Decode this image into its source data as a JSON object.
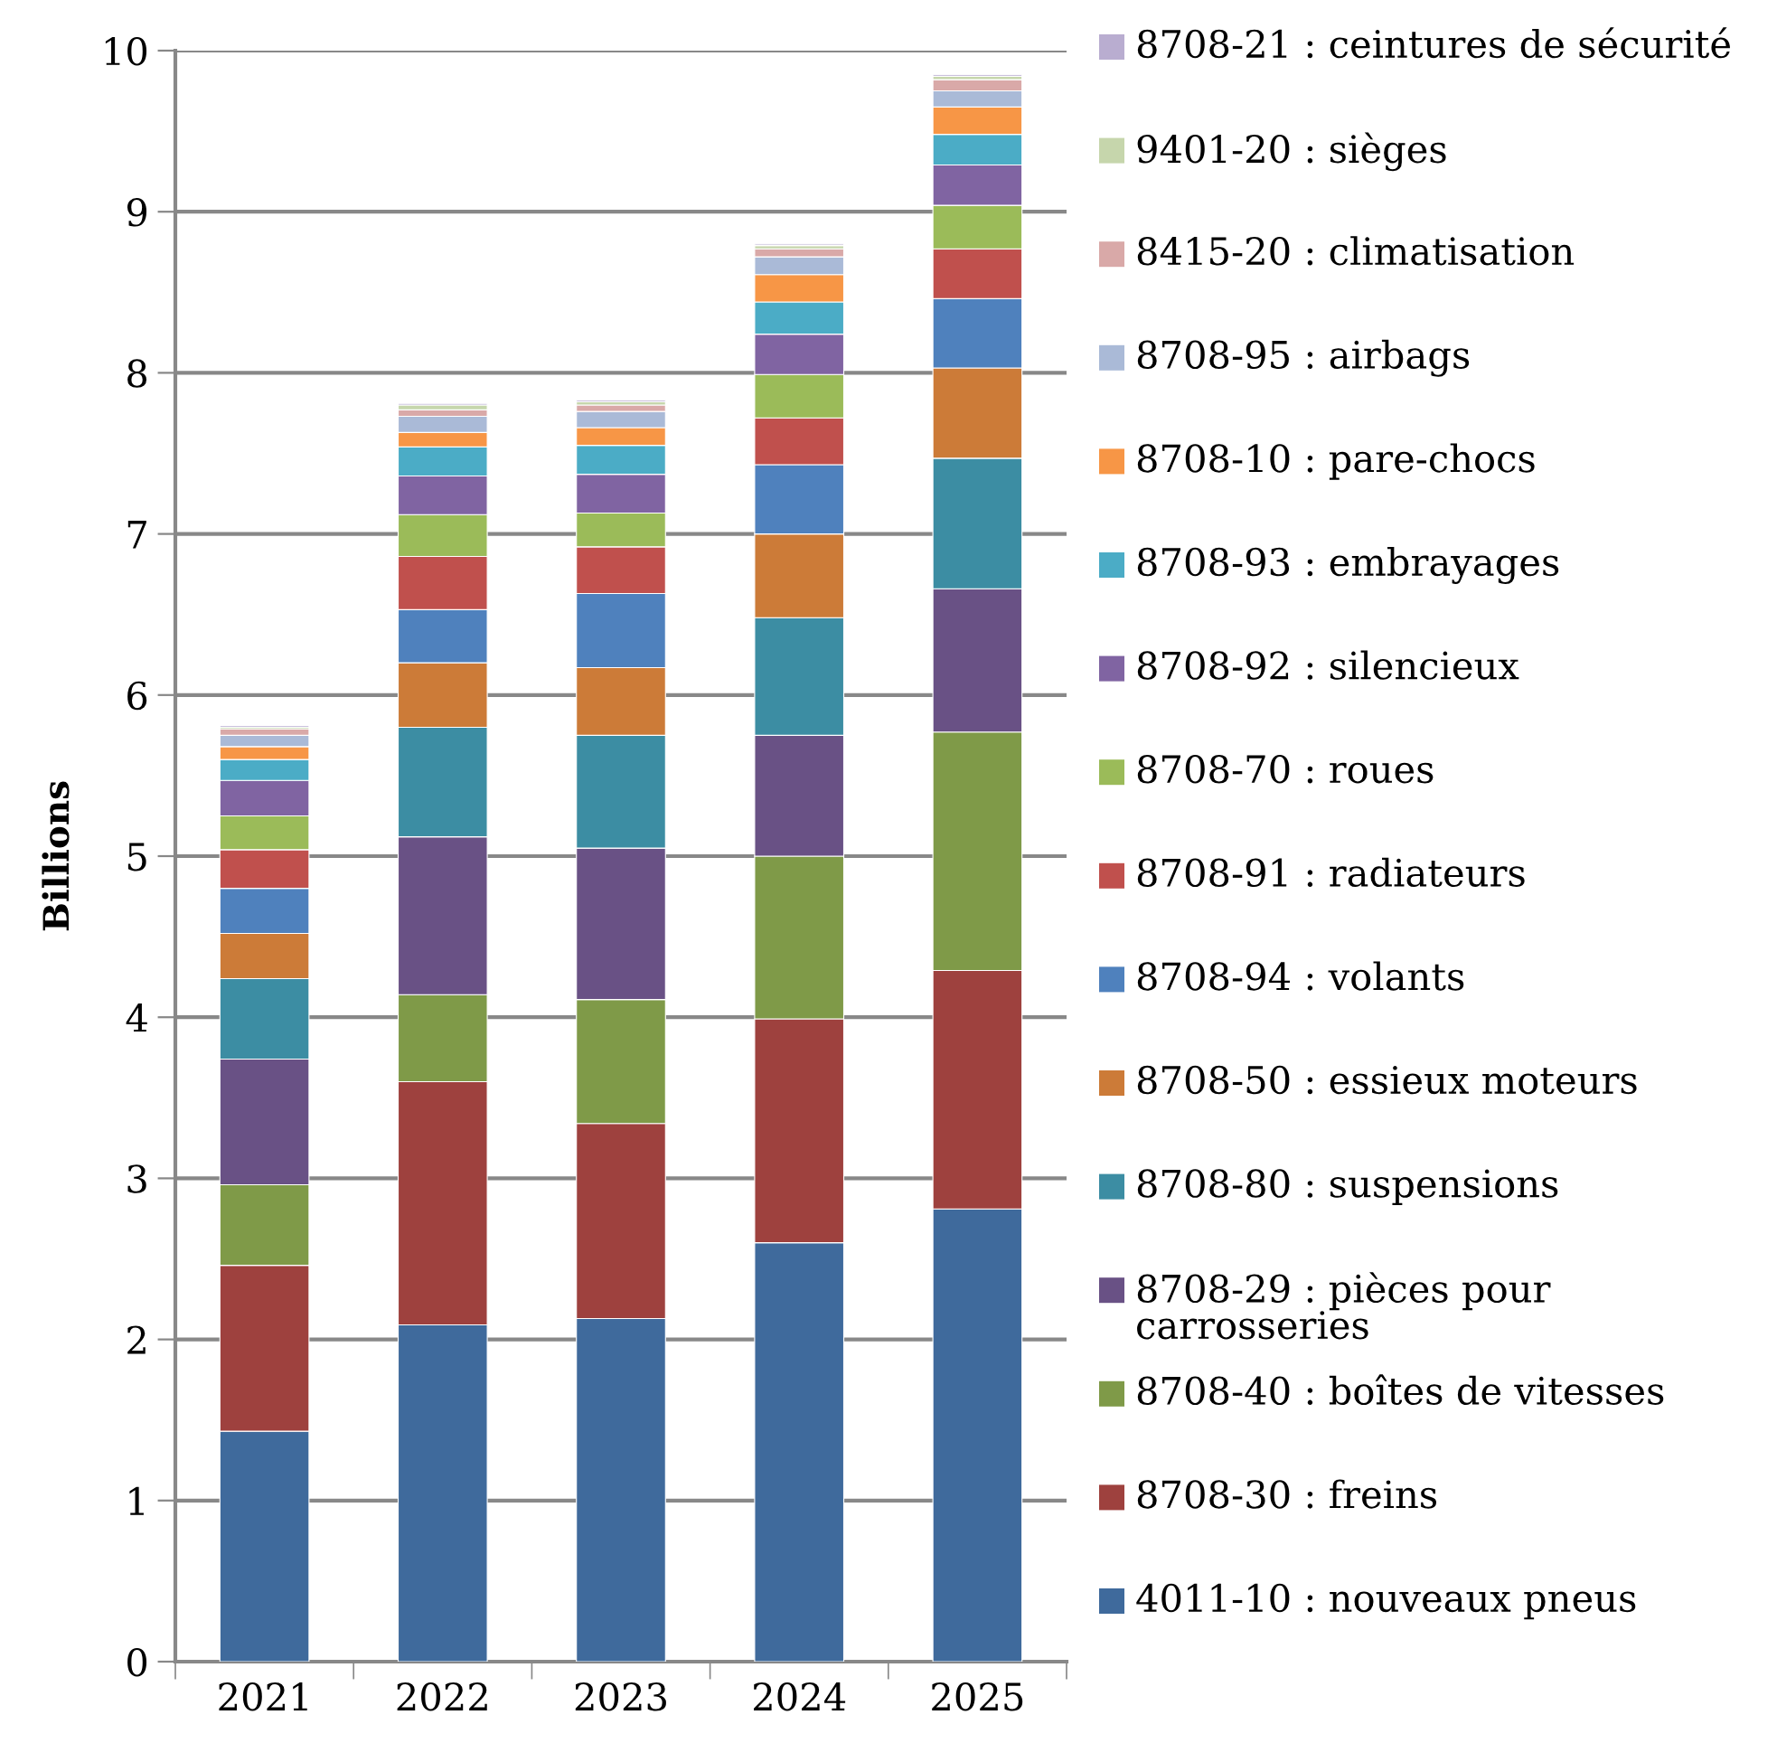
{
  "chart_data": {
    "type": "bar",
    "stacked": true,
    "ylabel": "Billions",
    "categories": [
      "2021",
      "2022",
      "2023",
      "2024",
      "2025"
    ],
    "ylim": [
      0,
      10
    ],
    "yticks": [
      0,
      1,
      2,
      3,
      4,
      5,
      6,
      7,
      8,
      9,
      10
    ],
    "grid": "y",
    "legend": "right",
    "series": [
      {
        "name": "4011-10 : nouveaux pneus",
        "color": "#3f6a9c",
        "values": [
          1.43,
          2.09,
          2.13,
          2.6,
          2.81
        ]
      },
      {
        "name": "8708-30 : freins",
        "color": "#9e413e",
        "values": [
          1.03,
          1.51,
          1.21,
          1.39,
          1.48
        ]
      },
      {
        "name": "8708-40 : boîtes de vitesses",
        "color": "#7f9a48",
        "values": [
          0.5,
          0.54,
          0.77,
          1.01,
          1.48
        ]
      },
      {
        "name": "8708-29 : pièces pour carrosseries",
        "color": "#695185",
        "values": [
          0.78,
          0.98,
          0.94,
          0.75,
          0.89
        ]
      },
      {
        "name": "8708-80 : suspensions",
        "color": "#3c8da3",
        "values": [
          0.5,
          0.68,
          0.7,
          0.73,
          0.81
        ]
      },
      {
        "name": "8708-50 : essieux moteurs",
        "color": "#cc7b38",
        "values": [
          0.28,
          0.4,
          0.42,
          0.52,
          0.56
        ]
      },
      {
        "name": "8708-94 : volants",
        "color": "#4f81bd",
        "values": [
          0.28,
          0.33,
          0.46,
          0.43,
          0.43
        ]
      },
      {
        "name": "8708-91 : radiateurs",
        "color": "#c0504d",
        "values": [
          0.24,
          0.33,
          0.29,
          0.29,
          0.31
        ]
      },
      {
        "name": "8708-70 : roues",
        "color": "#9bbb59",
        "values": [
          0.21,
          0.26,
          0.21,
          0.27,
          0.27
        ]
      },
      {
        "name": "8708-92 : silencieux",
        "color": "#8064a2",
        "values": [
          0.22,
          0.24,
          0.24,
          0.25,
          0.25
        ]
      },
      {
        "name": "8708-93 : embrayages",
        "color": "#4bacc6",
        "values": [
          0.13,
          0.18,
          0.18,
          0.2,
          0.19
        ]
      },
      {
        "name": "8708-10 : pare-chocs",
        "color": "#f79646",
        "values": [
          0.08,
          0.09,
          0.11,
          0.17,
          0.17
        ]
      },
      {
        "name": "8708-95 : airbags",
        "color": "#aabad7",
        "values": [
          0.07,
          0.1,
          0.1,
          0.11,
          0.1
        ]
      },
      {
        "name": "8415-20 : climatisation",
        "color": "#d9a9a8",
        "values": [
          0.04,
          0.04,
          0.04,
          0.05,
          0.07
        ]
      },
      {
        "name": "9401-20 : sièges",
        "color": "#c6d6ac",
        "values": [
          0.01,
          0.03,
          0.02,
          0.02,
          0.02
        ]
      },
      {
        "name": "8708-21 : ceintures de sécurité",
        "color": "#b9add0",
        "values": [
          0.01,
          0.01,
          0.01,
          0.01,
          0.01
        ]
      }
    ]
  }
}
